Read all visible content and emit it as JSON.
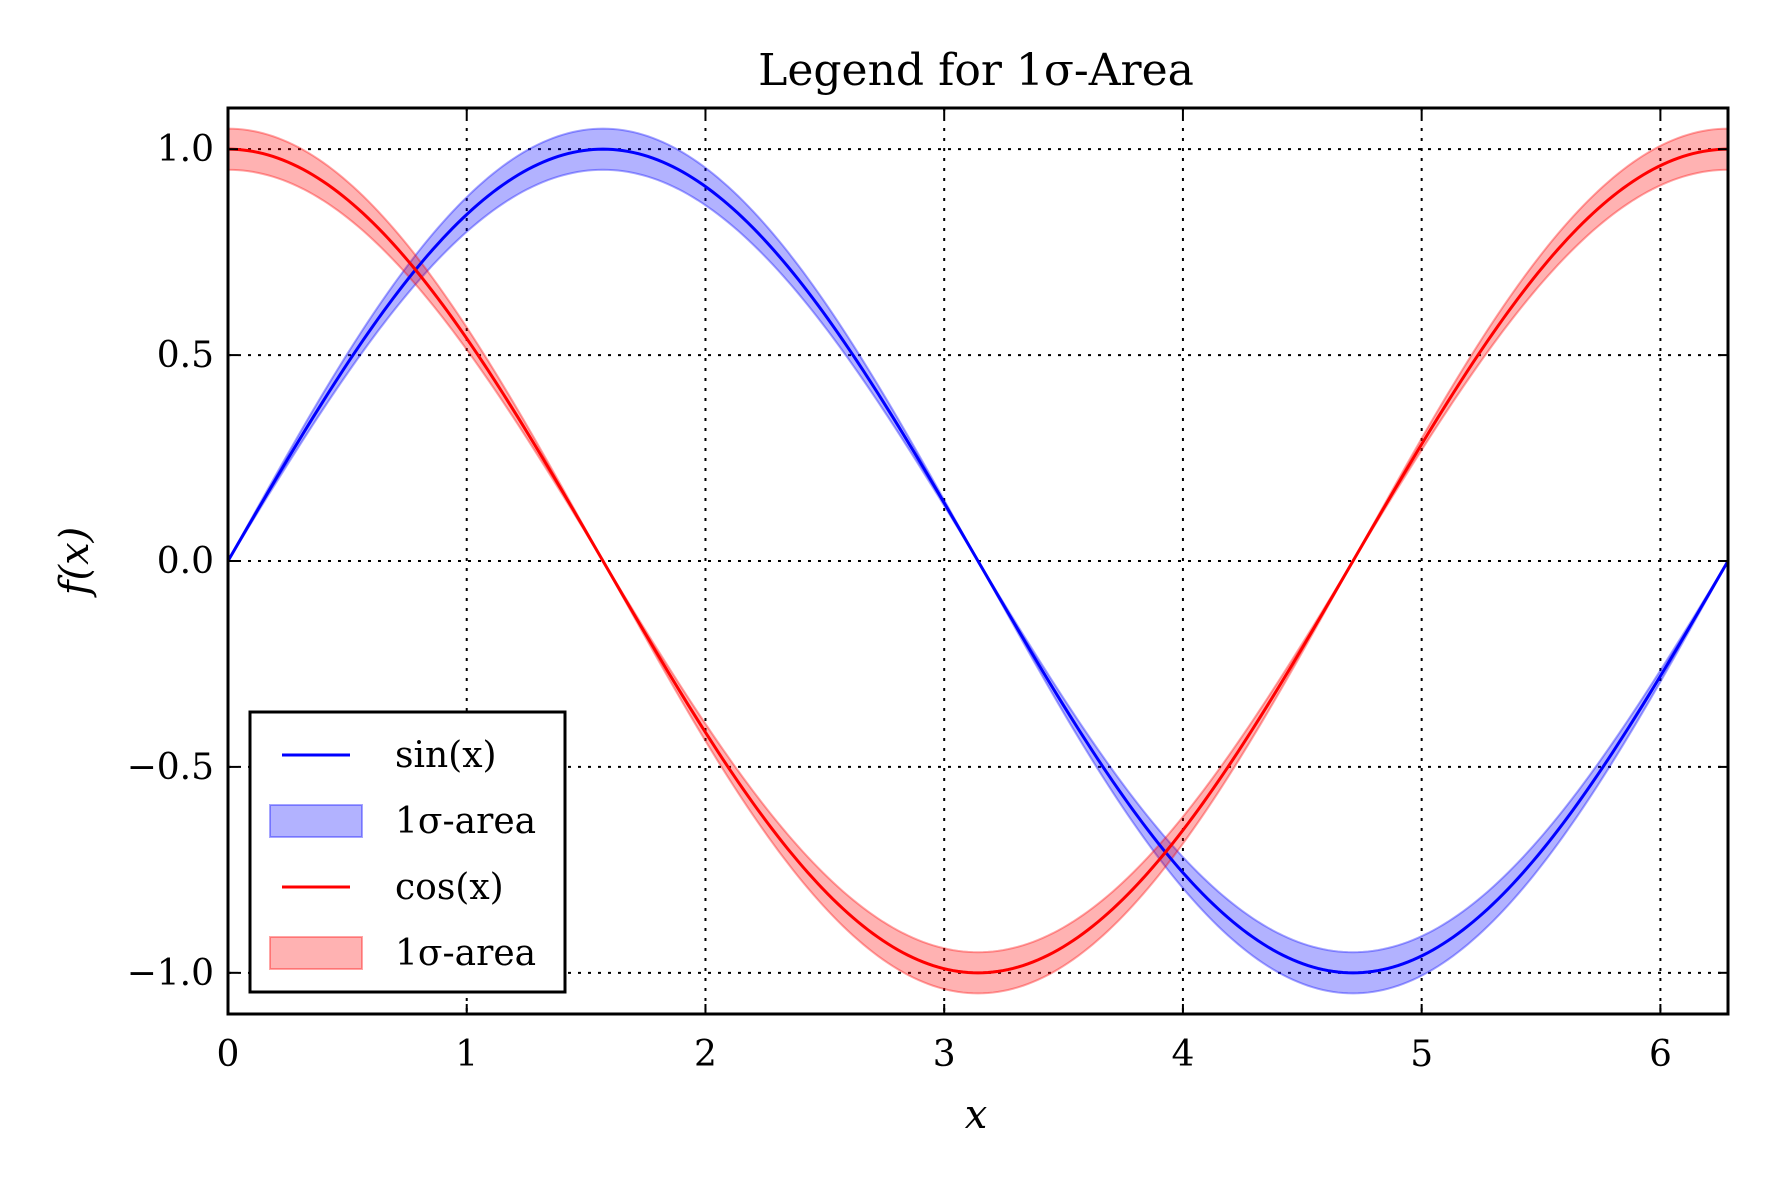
{
  "chart_data": {
    "type": "line",
    "title": "Legend for 1σ-Area",
    "xlabel": "x",
    "ylabel": "f(x)",
    "xlim": [
      0,
      6.283185
    ],
    "ylim": [
      -1.1,
      1.1
    ],
    "grid": true,
    "legend_position": "bottom-left",
    "x_ticks": [
      0,
      1,
      2,
      3,
      4,
      5,
      6
    ],
    "x_tick_labels": [
      "0",
      "1",
      "2",
      "3",
      "4",
      "5",
      "6"
    ],
    "y_ticks": [
      1.0,
      0.5,
      0.0,
      -0.5,
      -1.0
    ],
    "y_tick_labels": [
      "1.0",
      "0.5",
      "0.0",
      "−0.5",
      "−1.0"
    ],
    "series": [
      {
        "name": "sin(x)",
        "function": "sin",
        "color": "#0000ff",
        "band_name": "1σ-area",
        "band_color": "#0000ff",
        "band_alpha": 0.3,
        "band_halfwidth_max": 0.05,
        "x": [
          0,
          0.785,
          1.571,
          2.356,
          3.142,
          3.927,
          4.712,
          5.498,
          6.283
        ],
        "y": [
          0,
          0.707,
          1.0,
          0.707,
          0,
          -0.707,
          -1.0,
          -0.707,
          0
        ]
      },
      {
        "name": "cos(x)",
        "function": "cos",
        "color": "#ff0000",
        "band_name": "1σ-area",
        "band_color": "#ff0000",
        "band_alpha": 0.3,
        "band_halfwidth_max": 0.05,
        "x": [
          0,
          0.785,
          1.571,
          2.356,
          3.142,
          3.927,
          4.712,
          5.498,
          6.283
        ],
        "y": [
          1.0,
          0.707,
          0,
          -0.707,
          -1.0,
          -0.707,
          0,
          0.707,
          1.0
        ]
      }
    ],
    "legend_entries": [
      {
        "label": "sin(x)",
        "kind": "line",
        "color": "#0000ff"
      },
      {
        "label": "1σ-area",
        "kind": "patch",
        "color": "#0000ff"
      },
      {
        "label": "cos(x)",
        "kind": "line",
        "color": "#ff0000"
      },
      {
        "label": "1σ-area",
        "kind": "patch",
        "color": "#ff0000"
      }
    ]
  }
}
